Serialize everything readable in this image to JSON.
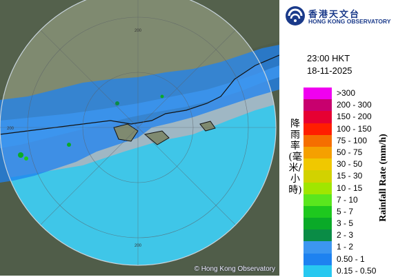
{
  "logo": {
    "name_zh": "香港天文台",
    "name_en": "HONG KONG OBSERVATORY"
  },
  "timestamp": {
    "time": "23:00 HKT",
    "date": "18-11-2025"
  },
  "legend": {
    "title_zh": "降雨率(毫米/小時)",
    "title_en": "Rainfall Rate (mm/h)",
    "ranges": [
      {
        "label": ">300",
        "color": "#f000f0"
      },
      {
        "label": "200 - 300",
        "color": "#c8006e"
      },
      {
        "label": "150 - 200",
        "color": "#e60032"
      },
      {
        "label": "100 - 150",
        "color": "#ff1e00"
      },
      {
        "label": "75 - 100",
        "color": "#f56e00"
      },
      {
        "label": "50 - 75",
        "color": "#f5a000"
      },
      {
        "label": "30 - 50",
        "color": "#f0c800"
      },
      {
        "label": "15 - 30",
        "color": "#d2d200"
      },
      {
        "label": "10 - 15",
        "color": "#a0e600"
      },
      {
        "label": "7 - 10",
        "color": "#5ae61e"
      },
      {
        "label": "5 - 7",
        "color": "#1ec81e"
      },
      {
        "label": "3 - 5",
        "color": "#0aaa28"
      },
      {
        "label": "2 - 3",
        "color": "#0a8c46"
      },
      {
        "label": "1 - 2",
        "color": "#3c96f0"
      },
      {
        "label": "0.50 - 1",
        "color": "#1e82f0"
      },
      {
        "label": "0.15 - 0.50",
        "color": "#28c8f0"
      }
    ]
  },
  "map": {
    "range_labels": [
      "200",
      "200",
      "200"
    ]
  },
  "copyright": "© Hong Kong Observatory"
}
